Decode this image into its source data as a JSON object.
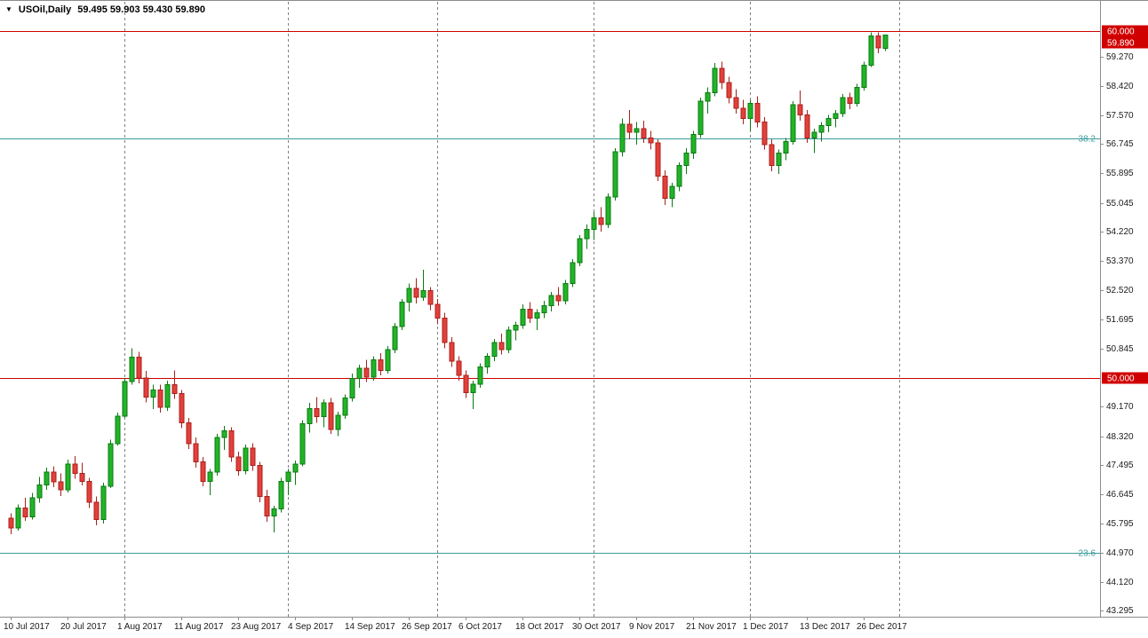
{
  "window": {
    "symbol_arrow": "▼",
    "title": "USOil,Daily",
    "ohlc_display": "59.495 59.903 59.430 59.890"
  },
  "chart_data": {
    "type": "candlestick",
    "symbol": "USOil",
    "timeframe": "Daily",
    "quote": {
      "open": "59.495",
      "high": "59.903",
      "low": "59.430",
      "close": "59.890"
    },
    "bid_tag": {
      "label": "59.890"
    },
    "price_lines": [
      {
        "label": "60.000",
        "price": 60.0
      },
      {
        "label": "50.000",
        "price": 50.0
      }
    ],
    "fib_levels": [
      {
        "label": "38.2",
        "price": 56.9
      },
      {
        "label": "23.6",
        "price": 44.97
      }
    ],
    "y_ticks": [
      "59.270",
      "58.420",
      "57.570",
      "56.745",
      "55.895",
      "55.045",
      "54.220",
      "53.370",
      "52.520",
      "51.695",
      "50.845",
      "49.170",
      "48.320",
      "47.495",
      "46.645",
      "45.795",
      "44.970",
      "44.120",
      "43.295"
    ],
    "x_labels": [
      {
        "index": 0,
        "text": "10 Jul 2017"
      },
      {
        "index": 8,
        "text": "20 Jul 2017"
      },
      {
        "index": 16,
        "text": "1 Aug 2017"
      },
      {
        "index": 24,
        "text": "11 Aug 2017"
      },
      {
        "index": 32,
        "text": "23 Aug 2017"
      },
      {
        "index": 40,
        "text": "4 Sep 2017"
      },
      {
        "index": 48,
        "text": "14 Sep 2017"
      },
      {
        "index": 56,
        "text": "26 Sep 2017"
      },
      {
        "index": 64,
        "text": "6 Oct 2017"
      },
      {
        "index": 72,
        "text": "18 Oct 2017"
      },
      {
        "index": 80,
        "text": "30 Oct 2017"
      },
      {
        "index": 88,
        "text": "9 Nov 2017"
      },
      {
        "index": 96,
        "text": "21 Nov 2017"
      },
      {
        "index": 104,
        "text": "1 Dec 2017"
      },
      {
        "index": 112,
        "text": "13 Dec 2017"
      },
      {
        "index": 120,
        "text": "26 Dec 2017"
      }
    ],
    "month_separators": [
      16,
      39,
      60,
      82,
      104,
      125
    ],
    "colors": {
      "bull": "#21B427",
      "bull_border": "#0B7A12",
      "bear": "#E3403B",
      "bear_border": "#A8201B",
      "line_red": "#D10000",
      "fib": "#3B9B9B",
      "grid": "#808080",
      "axis_text": "#1a1a1a",
      "tag_text": "#FFFFFF",
      "frame": "#8C8C8C"
    },
    "ylim": [
      43.295,
      60.45
    ],
    "candles": [
      [
        45.95,
        46.1,
        45.5,
        45.68
      ],
      [
        45.68,
        46.35,
        45.6,
        46.25
      ],
      [
        46.25,
        46.55,
        45.88,
        46.0
      ],
      [
        46.0,
        46.68,
        45.92,
        46.55
      ],
      [
        46.55,
        47.15,
        46.4,
        46.92
      ],
      [
        46.92,
        47.42,
        46.78,
        47.28
      ],
      [
        47.28,
        47.45,
        46.85,
        47.0
      ],
      [
        47.0,
        47.25,
        46.6,
        46.78
      ],
      [
        46.78,
        47.65,
        46.7,
        47.52
      ],
      [
        47.52,
        47.75,
        47.1,
        47.25
      ],
      [
        47.25,
        47.55,
        46.9,
        47.02
      ],
      [
        47.02,
        47.12,
        46.25,
        46.42
      ],
      [
        46.42,
        46.58,
        45.75,
        45.92
      ],
      [
        45.92,
        46.98,
        45.8,
        46.88
      ],
      [
        46.88,
        48.22,
        46.82,
        48.1
      ],
      [
        48.1,
        49.0,
        48.05,
        48.9
      ],
      [
        48.9,
        50.0,
        48.85,
        49.9
      ],
      [
        49.9,
        50.85,
        49.8,
        50.6
      ],
      [
        50.6,
        50.75,
        49.85,
        50.0
      ],
      [
        50.0,
        50.2,
        49.3,
        49.45
      ],
      [
        49.45,
        49.8,
        49.1,
        49.65
      ],
      [
        49.65,
        49.8,
        49.0,
        49.15
      ],
      [
        49.15,
        49.92,
        49.05,
        49.8
      ],
      [
        49.8,
        50.22,
        49.4,
        49.55
      ],
      [
        49.55,
        49.65,
        48.55,
        48.7
      ],
      [
        48.7,
        48.85,
        47.95,
        48.1
      ],
      [
        48.1,
        48.28,
        47.42,
        47.58
      ],
      [
        47.58,
        47.72,
        46.88,
        47.02
      ],
      [
        47.02,
        47.38,
        46.62,
        47.28
      ],
      [
        47.28,
        48.38,
        47.18,
        48.28
      ],
      [
        48.28,
        48.62,
        47.92,
        48.48
      ],
      [
        48.48,
        48.58,
        47.58,
        47.72
      ],
      [
        47.72,
        47.88,
        47.18,
        47.32
      ],
      [
        47.32,
        48.08,
        47.22,
        47.98
      ],
      [
        47.98,
        48.12,
        47.32,
        47.48
      ],
      [
        47.48,
        47.58,
        46.42,
        46.58
      ],
      [
        46.58,
        46.78,
        45.85,
        46.02
      ],
      [
        46.02,
        46.32,
        45.55,
        46.22
      ],
      [
        46.22,
        47.12,
        46.12,
        47.02
      ],
      [
        47.02,
        47.38,
        46.62,
        47.28
      ],
      [
        47.28,
        47.62,
        46.92,
        47.52
      ],
      [
        47.52,
        48.78,
        47.45,
        48.68
      ],
      [
        48.68,
        49.28,
        48.42,
        49.12
      ],
      [
        49.12,
        49.45,
        48.7,
        48.88
      ],
      [
        48.88,
        49.38,
        48.58,
        49.28
      ],
      [
        49.28,
        49.42,
        48.38,
        48.52
      ],
      [
        48.52,
        49.02,
        48.32,
        48.92
      ],
      [
        48.92,
        49.52,
        48.82,
        49.42
      ],
      [
        49.42,
        50.12,
        49.32,
        49.98
      ],
      [
        49.98,
        50.38,
        49.72,
        50.28
      ],
      [
        50.28,
        50.52,
        49.88,
        50.02
      ],
      [
        50.02,
        50.62,
        49.92,
        50.52
      ],
      [
        50.52,
        50.72,
        50.08,
        50.22
      ],
      [
        50.22,
        50.92,
        50.12,
        50.82
      ],
      [
        50.82,
        51.58,
        50.72,
        51.48
      ],
      [
        51.48,
        52.28,
        51.38,
        52.18
      ],
      [
        52.18,
        52.72,
        51.92,
        52.58
      ],
      [
        52.58,
        52.88,
        52.15,
        52.32
      ],
      [
        52.32,
        53.12,
        52.22,
        52.52
      ],
      [
        52.52,
        52.62,
        51.95,
        52.12
      ],
      [
        52.12,
        52.28,
        51.55,
        51.72
      ],
      [
        51.72,
        51.88,
        50.85,
        51.02
      ],
      [
        51.02,
        51.18,
        50.32,
        50.48
      ],
      [
        50.48,
        50.62,
        49.92,
        50.08
      ],
      [
        50.08,
        50.22,
        49.42,
        49.58
      ],
      [
        49.58,
        49.92,
        49.1,
        49.82
      ],
      [
        49.82,
        50.42,
        49.72,
        50.32
      ],
      [
        50.32,
        50.72,
        50.12,
        50.62
      ],
      [
        50.62,
        51.12,
        50.48,
        51.02
      ],
      [
        51.02,
        51.28,
        50.68,
        50.82
      ],
      [
        50.82,
        51.48,
        50.72,
        51.38
      ],
      [
        51.38,
        51.62,
        51.08,
        51.52
      ],
      [
        51.52,
        52.12,
        51.42,
        51.98
      ],
      [
        51.98,
        52.18,
        51.58,
        51.72
      ],
      [
        51.72,
        51.98,
        51.38,
        51.88
      ],
      [
        51.88,
        52.22,
        51.72,
        52.08
      ],
      [
        52.08,
        52.48,
        51.92,
        52.38
      ],
      [
        52.38,
        52.62,
        52.08,
        52.22
      ],
      [
        52.22,
        52.82,
        52.12,
        52.72
      ],
      [
        52.72,
        53.42,
        52.62,
        53.32
      ],
      [
        53.32,
        54.12,
        53.22,
        54.02
      ],
      [
        54.02,
        54.42,
        53.72,
        54.28
      ],
      [
        54.28,
        54.78,
        53.98,
        54.62
      ],
      [
        54.62,
        54.92,
        54.22,
        54.42
      ],
      [
        54.42,
        55.32,
        54.32,
        55.22
      ],
      [
        55.22,
        56.62,
        55.12,
        56.52
      ],
      [
        56.52,
        57.48,
        56.38,
        57.32
      ],
      [
        57.32,
        57.72,
        56.88,
        57.08
      ],
      [
        57.08,
        57.38,
        56.72,
        57.18
      ],
      [
        57.18,
        57.42,
        56.78,
        56.92
      ],
      [
        56.92,
        57.12,
        56.58,
        56.78
      ],
      [
        56.78,
        56.88,
        55.68,
        55.82
      ],
      [
        55.82,
        55.98,
        54.98,
        55.18
      ],
      [
        55.18,
        55.62,
        54.92,
        55.52
      ],
      [
        55.52,
        56.22,
        55.38,
        56.12
      ],
      [
        56.12,
        56.62,
        55.88,
        56.48
      ],
      [
        56.48,
        57.12,
        56.32,
        57.02
      ],
      [
        57.02,
        58.08,
        56.92,
        57.98
      ],
      [
        57.98,
        58.38,
        57.62,
        58.22
      ],
      [
        58.22,
        59.08,
        58.12,
        58.92
      ],
      [
        58.92,
        59.12,
        58.32,
        58.52
      ],
      [
        58.52,
        58.68,
        57.92,
        58.08
      ],
      [
        58.08,
        58.32,
        57.62,
        57.78
      ],
      [
        57.78,
        58.02,
        57.32,
        57.48
      ],
      [
        57.48,
        58.02,
        57.12,
        57.92
      ],
      [
        57.92,
        58.12,
        57.22,
        57.38
      ],
      [
        57.38,
        57.52,
        56.58,
        56.72
      ],
      [
        56.72,
        56.88,
        55.96,
        56.12
      ],
      [
        56.12,
        56.58,
        55.88,
        56.48
      ],
      [
        56.48,
        56.92,
        56.28,
        56.82
      ],
      [
        56.82,
        57.98,
        56.72,
        57.88
      ],
      [
        57.88,
        58.28,
        57.42,
        57.58
      ],
      [
        57.58,
        57.72,
        56.78,
        56.92
      ],
      [
        56.92,
        57.18,
        56.48,
        57.08
      ],
      [
        57.08,
        57.38,
        56.82,
        57.28
      ],
      [
        57.28,
        57.58,
        57.08,
        57.48
      ],
      [
        57.48,
        57.72,
        57.22,
        57.62
      ],
      [
        57.62,
        58.18,
        57.52,
        58.08
      ],
      [
        58.08,
        58.22,
        57.75,
        57.92
      ],
      [
        57.92,
        58.48,
        57.82,
        58.38
      ],
      [
        58.38,
        59.12,
        58.28,
        59.02
      ],
      [
        59.02,
        59.96,
        58.96,
        59.86
      ],
      [
        59.86,
        59.96,
        59.36,
        59.52
      ],
      [
        59.495,
        59.903,
        59.43,
        59.89
      ]
    ]
  }
}
